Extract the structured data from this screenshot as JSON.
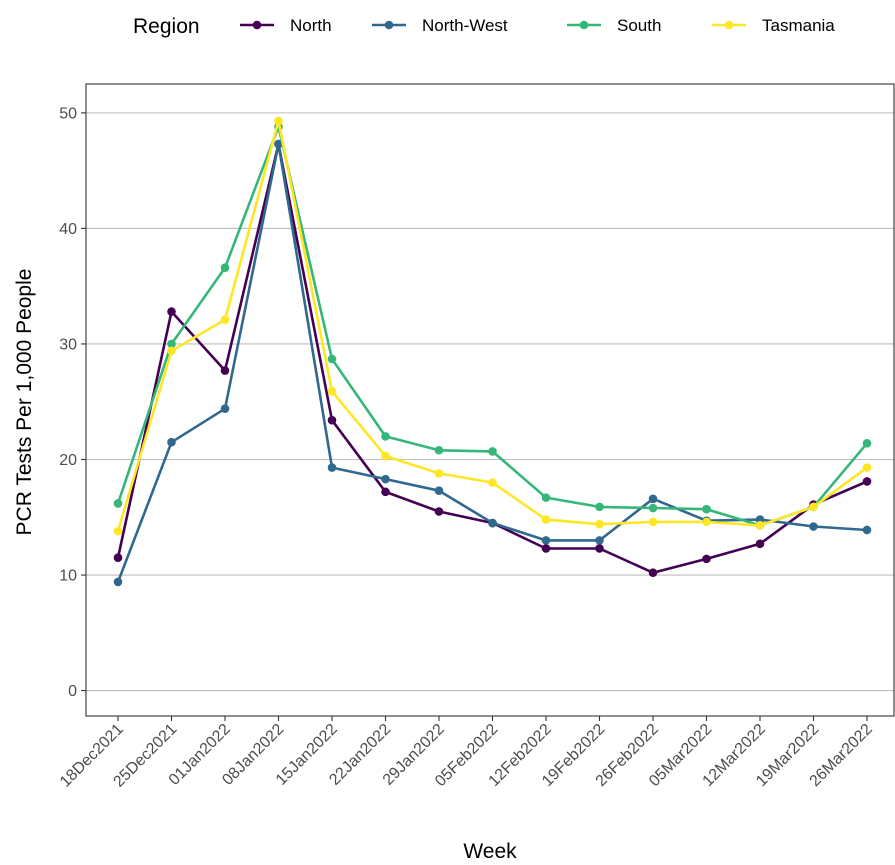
{
  "chart_data": {
    "type": "line",
    "xlabel": "Week",
    "ylabel": "PCR Tests Per 1,000 People",
    "legend_title": "Region",
    "legend_position": "top",
    "grid": "horizontal-major",
    "ylim": [
      -2.2,
      52.5
    ],
    "yticks": [
      0,
      10,
      20,
      30,
      40,
      50
    ],
    "categories": [
      "18Dec2021",
      "25Dec2021",
      "01Jan2022",
      "08Jan2022",
      "15Jan2022",
      "22Jan2022",
      "29Jan2022",
      "05Feb2022",
      "12Feb2022",
      "19Feb2022",
      "26Feb2022",
      "05Mar2022",
      "12Mar2022",
      "19Mar2022",
      "26Mar2022"
    ],
    "series": [
      {
        "name": "North",
        "color": "#440154",
        "values": [
          11.5,
          32.8,
          27.7,
          47.3,
          23.4,
          17.2,
          15.5,
          14.5,
          12.3,
          12.3,
          10.2,
          11.4,
          12.7,
          16.1,
          18.1
        ]
      },
      {
        "name": "North-West",
        "color": "#31688e",
        "values": [
          9.4,
          21.5,
          24.4,
          47.3,
          19.3,
          18.3,
          17.3,
          14.5,
          13.0,
          13.0,
          16.6,
          14.7,
          14.8,
          14.2,
          13.9
        ]
      },
      {
        "name": "South",
        "color": "#35b779",
        "values": [
          16.2,
          30.0,
          36.6,
          48.8,
          28.7,
          22.0,
          20.8,
          20.7,
          16.7,
          15.9,
          15.8,
          15.7,
          14.3,
          15.9,
          21.4
        ]
      },
      {
        "name": "Tasmania",
        "color": "#fde725",
        "values": [
          13.8,
          29.4,
          32.1,
          49.3,
          25.9,
          20.3,
          18.8,
          18.0,
          14.8,
          14.4,
          14.6,
          14.6,
          14.3,
          15.9,
          19.3
        ]
      }
    ]
  }
}
